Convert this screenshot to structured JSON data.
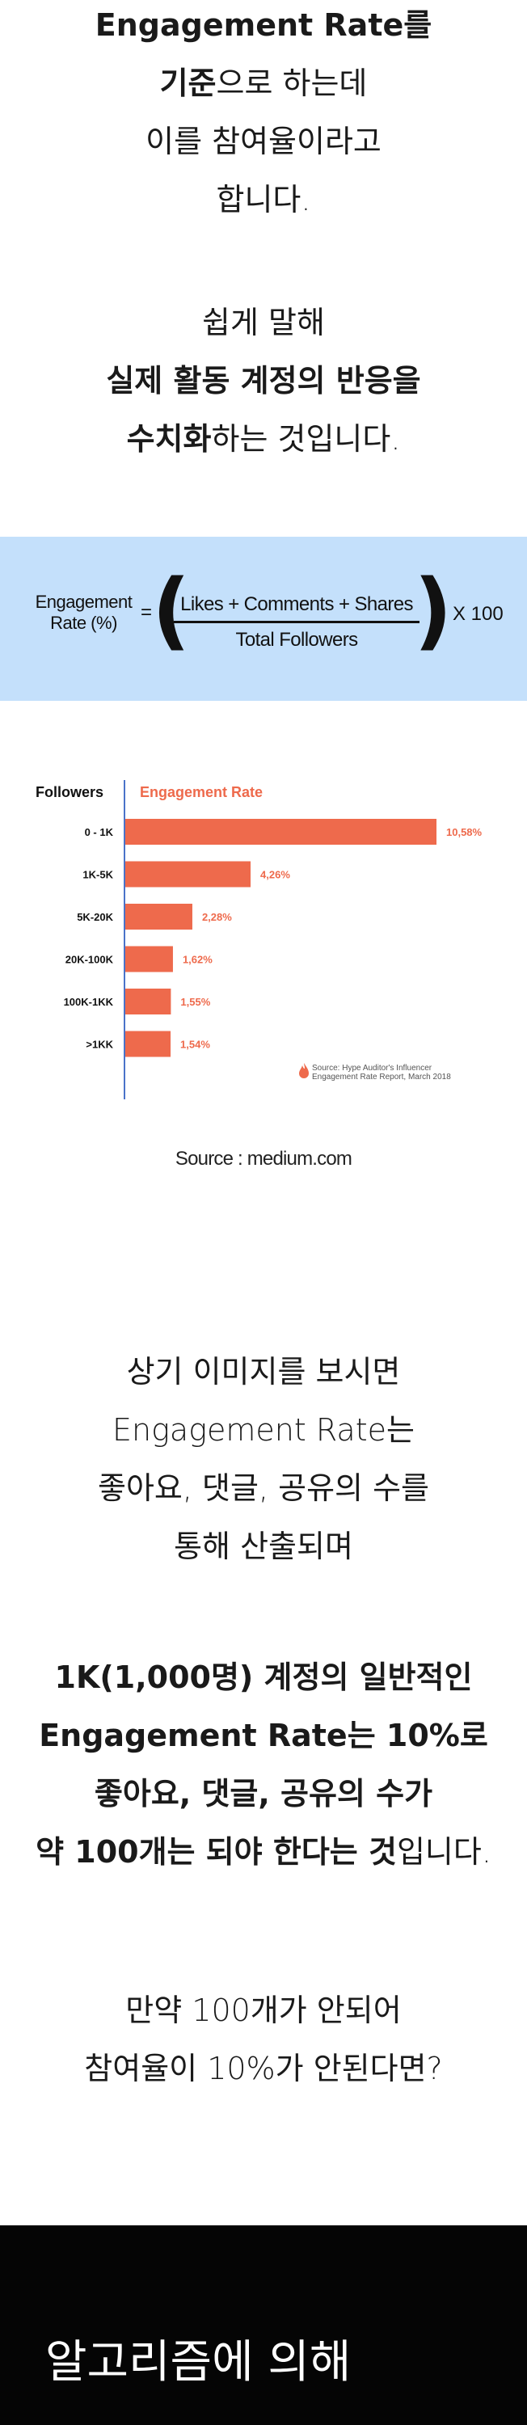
{
  "intro": {
    "line1_bold": "Engagement Rate",
    "line1_rest": "를",
    "line2_bold": "기준",
    "line2_rest": "으로 하는데",
    "line3": "이를 참여율이라고",
    "line4": "합니다.",
    "line5": "쉽게 말해",
    "line6": "실제 활동 계정의 반응을",
    "line7_bold": "수치화",
    "line7_rest": "하는 것입니다."
  },
  "formula": {
    "lhs_line1": "Engagement",
    "lhs_line2": "Rate (%)",
    "equals": "=",
    "numerator": "Likes + Comments + Shares",
    "denominator": "Total Followers",
    "multiplier": "X 100"
  },
  "chart_data": {
    "type": "bar",
    "orientation": "horizontal",
    "xlabel": "Followers",
    "ylabel": "Engagement Rate",
    "categories": [
      "0 - 1K",
      "1K-5K",
      "5K-20K",
      "20K-100K",
      "100K-1KK",
      ">1KK"
    ],
    "values": [
      10.58,
      4.26,
      2.28,
      1.62,
      1.55,
      1.54
    ],
    "value_labels": [
      "10,58%",
      "4,26%",
      "2,28%",
      "1,62%",
      "1,55%",
      "1,54%"
    ],
    "xlim": [
      0,
      10.58
    ],
    "bar_color": "#ee6a4c",
    "axis_color": "#4a73c9",
    "grid": false,
    "source_line1": "Source: Hype Auditor's Influencer",
    "source_line2": "Engagement Rate Report, March 2018"
  },
  "caption": "Source : medium.com",
  "body": {
    "p1_l1": "상기 이미지를 보시면",
    "p1_l2": "Engagement Rate는",
    "p1_l3": "좋아요, 댓글, 공유의 수를",
    "p1_l4": "통해 산출되며",
    "p2_l1": "1K(1,000명) 계정의 일반적인",
    "p2_l2": "Engagement Rate는 10%로",
    "p2_l3": "좋아요, 댓글, 공유의 수가",
    "p2_l4_bold": "약 100개는 되야 한다는 것",
    "p2_l4_rest": "입니다.",
    "p3_l1": "만약 100개가 안되어",
    "p3_l2": "참여율이 10%가 안된다면?"
  },
  "footer": {
    "text": "알고리즘에 의해",
    "background": "#050505"
  },
  "colors": {
    "formula_band": "#c4e0fb",
    "accent": "#ee6a4c"
  }
}
